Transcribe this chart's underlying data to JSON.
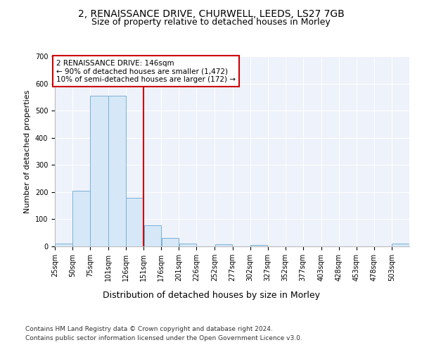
{
  "title_line1": "2, RENAISSANCE DRIVE, CHURWELL, LEEDS, LS27 7GB",
  "title_line2": "Size of property relative to detached houses in Morley",
  "xlabel": "Distribution of detached houses by size in Morley",
  "ylabel": "Number of detached properties",
  "bar_color": "#d6e8f7",
  "bar_edge_color": "#7ab0d8",
  "vline_x": 151,
  "vline_color": "#cc0000",
  "annotation_lines": [
    "2 RENAISSANCE DRIVE: 146sqm",
    "← 90% of detached houses are smaller (1,472)",
    "10% of semi-detached houses are larger (172) →"
  ],
  "annotation_box_color": "#cc0000",
  "bins": [
    25,
    50,
    75,
    101,
    126,
    151,
    176,
    201,
    226,
    252,
    277,
    302,
    327,
    352,
    377,
    403,
    428,
    453,
    478,
    503,
    528
  ],
  "bar_heights": [
    10,
    205,
    555,
    555,
    180,
    78,
    30,
    10,
    0,
    8,
    0,
    5,
    0,
    0,
    0,
    0,
    0,
    0,
    0,
    10
  ],
  "ylim": [
    0,
    700
  ],
  "yticks": [
    0,
    100,
    200,
    300,
    400,
    500,
    600,
    700
  ],
  "footnote1": "Contains HM Land Registry data © Crown copyright and database right 2024.",
  "footnote2": "Contains public sector information licensed under the Open Government Licence v3.0.",
  "background_color": "#eef2fa",
  "grid_color": "#ffffff",
  "title_fontsize": 10,
  "subtitle_fontsize": 9,
  "ylabel_fontsize": 8,
  "xlabel_fontsize": 9,
  "tick_fontsize": 7,
  "footnote_fontsize": 6.5
}
